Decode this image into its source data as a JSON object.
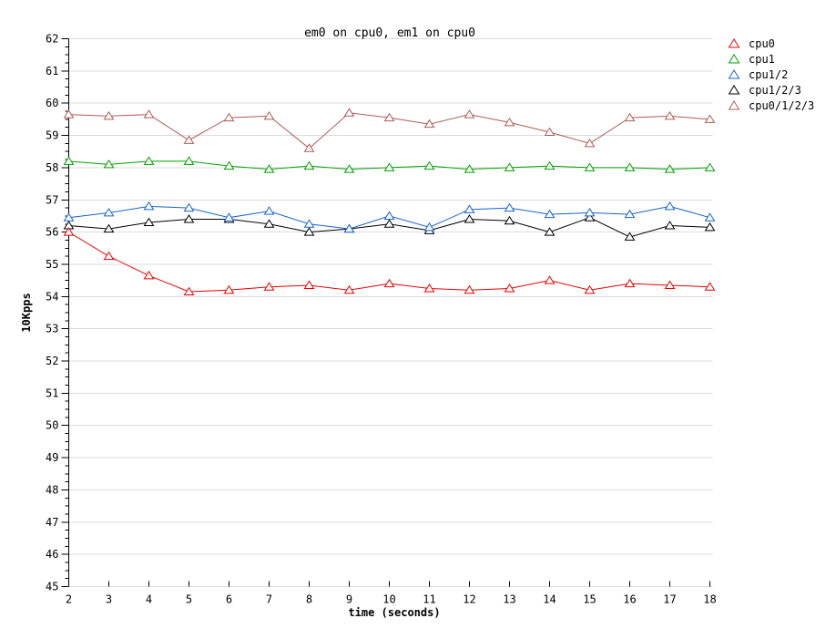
{
  "page": {
    "background": "#ffffff"
  },
  "chart_data": {
    "type": "line",
    "title": "em0 on cpu0, em1 on cpu0",
    "xlabel": "time (seconds)",
    "ylabel": "10Kpps",
    "xlim": [
      2,
      18
    ],
    "ylim": [
      45,
      62
    ],
    "x_ticks": [
      2,
      3,
      4,
      5,
      6,
      7,
      8,
      9,
      10,
      11,
      12,
      13,
      14,
      15,
      16,
      17,
      18
    ],
    "y_ticks": [
      45,
      46,
      47,
      48,
      49,
      50,
      51,
      52,
      53,
      54,
      55,
      56,
      57,
      58,
      59,
      60,
      61,
      62
    ],
    "y_minor_step": 0.25,
    "grid": "horizontal-only",
    "gridline_color": "#dcdcdc",
    "axis_color": "#000000",
    "marker": "open-triangle",
    "legend_position": "top-right-outside",
    "x": [
      2,
      3,
      4,
      5,
      6,
      7,
      8,
      9,
      10,
      11,
      12,
      13,
      14,
      15,
      16,
      17,
      18
    ],
    "series": [
      {
        "name": "cpu0",
        "color": "#ee0000",
        "values": [
          56.0,
          55.25,
          54.65,
          54.15,
          54.2,
          54.3,
          54.35,
          54.2,
          54.4,
          54.25,
          54.2,
          54.25,
          54.5,
          54.2,
          54.4,
          54.35,
          54.3
        ]
      },
      {
        "name": "cpu1",
        "color": "#00a000",
        "values": [
          58.2,
          58.1,
          58.2,
          58.2,
          58.05,
          57.95,
          58.05,
          57.95,
          58.0,
          58.05,
          57.95,
          58.0,
          58.05,
          58.0,
          58.0,
          57.95,
          58.0
        ]
      },
      {
        "name": "cpu1/2",
        "color": "#1565cc",
        "values": [
          56.45,
          56.6,
          56.8,
          56.75,
          56.45,
          56.65,
          56.25,
          56.1,
          56.5,
          56.15,
          56.7,
          56.75,
          56.55,
          56.6,
          56.55,
          56.8,
          56.45
        ]
      },
      {
        "name": "cpu1/2/3",
        "color": "#000000",
        "values": [
          56.2,
          56.1,
          56.3,
          56.4,
          56.4,
          56.25,
          56.0,
          56.1,
          56.25,
          56.05,
          56.4,
          56.35,
          56.0,
          56.45,
          55.85,
          56.2,
          56.15
        ]
      },
      {
        "name": "cpu0/1/2/3",
        "color": "#b05a5a",
        "values": [
          59.65,
          59.6,
          59.65,
          58.85,
          59.55,
          59.6,
          58.6,
          59.7,
          59.55,
          59.35,
          59.65,
          59.4,
          59.1,
          58.75,
          59.55,
          59.6,
          59.5
        ]
      }
    ]
  }
}
